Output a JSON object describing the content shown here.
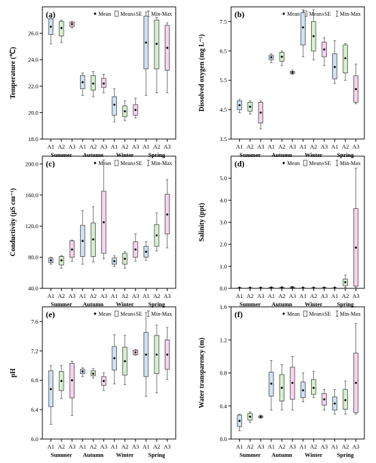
{
  "legend": {
    "mean_label": "Mean",
    "se_label": "Mean±SE",
    "minmax_label": "Min-Max"
  },
  "colors": {
    "A1": "#cfe2f3",
    "A2": "#d5f0cc",
    "A3": "#f7d3ee",
    "stroke": "#555555"
  },
  "chart_data": [
    {
      "type": "box",
      "panel_label": "(a)",
      "ylabel": "Temperature (℃)",
      "ylim": [
        18,
        28
      ],
      "yticks": [
        18.0,
        20.0,
        22.0,
        24.0,
        26.0
      ],
      "groups": [
        "Summer",
        "Autumn",
        "Winter",
        "Spring"
      ],
      "sites": [
        "A1",
        "A2",
        "A3"
      ],
      "boxes": [
        {
          "group": "Summer",
          "site": "A1",
          "min": 25.2,
          "se_low": 25.9,
          "mean": 26.5,
          "se_high": 27.1,
          "max": 27.2
        },
        {
          "group": "Summer",
          "site": "A2",
          "min": 25.3,
          "se_low": 25.8,
          "mean": 26.4,
          "se_high": 26.9,
          "max": 27.0
        },
        {
          "group": "Summer",
          "site": "A3",
          "min": 26.4,
          "se_low": 26.5,
          "mean": 26.7,
          "se_high": 26.85,
          "max": 26.9
        },
        {
          "group": "Autumn",
          "site": "A1",
          "min": 21.3,
          "se_low": 21.8,
          "mean": 22.3,
          "se_high": 22.8,
          "max": 23.0
        },
        {
          "group": "Autumn",
          "site": "A2",
          "min": 21.2,
          "se_low": 21.7,
          "mean": 22.2,
          "se_high": 22.8,
          "max": 23.1
        },
        {
          "group": "Autumn",
          "site": "A3",
          "min": 21.5,
          "se_low": 21.9,
          "mean": 22.2,
          "se_high": 22.6,
          "max": 22.9
        },
        {
          "group": "Winter",
          "site": "A1",
          "min": 19.3,
          "se_low": 19.8,
          "mean": 20.6,
          "se_high": 21.2,
          "max": 21.8
        },
        {
          "group": "Winter",
          "site": "A2",
          "min": 19.4,
          "se_low": 19.7,
          "mean": 20.1,
          "se_high": 20.5,
          "max": 20.9
        },
        {
          "group": "Winter",
          "site": "A3",
          "min": 19.6,
          "se_low": 19.8,
          "mean": 20.2,
          "se_high": 20.6,
          "max": 21.1
        },
        {
          "group": "Spring",
          "site": "A1",
          "min": 21.3,
          "se_low": 23.3,
          "mean": 25.3,
          "se_high": 27.3,
          "max": 27.6
        },
        {
          "group": "Spring",
          "site": "A2",
          "min": 21.5,
          "se_low": 23.3,
          "mean": 25.2,
          "se_high": 27.0,
          "max": 27.2
        },
        {
          "group": "Spring",
          "site": "A3",
          "min": 21.5,
          "se_low": 23.2,
          "mean": 24.9,
          "se_high": 26.6,
          "max": 26.8
        }
      ]
    },
    {
      "type": "box",
      "panel_label": "(b)",
      "ylabel": "Dissolved oxygen (mg L⁻¹)",
      "ylim": [
        3.5,
        8.0
      ],
      "yticks": [
        3.5,
        4.5,
        5.5,
        6.5,
        7.5
      ],
      "groups": [
        "Summer",
        "Autumn",
        "Winter",
        "Spring"
      ],
      "sites": [
        "A1",
        "A2",
        "A3"
      ],
      "boxes": [
        {
          "group": "Summer",
          "site": "A1",
          "min": 4.4,
          "se_low": 4.5,
          "mean": 4.65,
          "se_high": 4.8,
          "max": 4.85
        },
        {
          "group": "Summer",
          "site": "A2",
          "min": 4.35,
          "se_low": 4.45,
          "mean": 4.6,
          "se_high": 4.75,
          "max": 4.8
        },
        {
          "group": "Summer",
          "site": "A3",
          "min": 3.85,
          "se_low": 4.05,
          "mean": 4.4,
          "se_high": 4.75,
          "max": 4.8
        },
        {
          "group": "Autumn",
          "site": "A1",
          "min": 6.1,
          "se_low": 6.2,
          "mean": 6.28,
          "se_high": 6.35,
          "max": 6.4
        },
        {
          "group": "Autumn",
          "site": "A2",
          "min": 6.0,
          "se_low": 6.15,
          "mean": 6.3,
          "se_high": 6.45,
          "max": 6.5
        },
        {
          "group": "Autumn",
          "site": "A3",
          "min": 5.7,
          "se_low": 5.73,
          "mean": 5.77,
          "se_high": 5.8,
          "max": 5.85
        },
        {
          "group": "Winter",
          "site": "A1",
          "min": 6.3,
          "se_low": 6.7,
          "mean": 7.3,
          "se_high": 7.8,
          "max": 7.9
        },
        {
          "group": "Winter",
          "site": "A2",
          "min": 6.2,
          "se_low": 6.5,
          "mean": 7.0,
          "se_high": 7.5,
          "max": 7.9
        },
        {
          "group": "Winter",
          "site": "A3",
          "min": 6.0,
          "se_low": 6.3,
          "mean": 6.55,
          "se_high": 6.8,
          "max": 6.95
        },
        {
          "group": "Spring",
          "site": "A1",
          "min": 5.4,
          "se_low": 5.55,
          "mean": 5.95,
          "se_high": 6.4,
          "max": 6.85
        },
        {
          "group": "Spring",
          "site": "A2",
          "min": 5.5,
          "se_low": 5.75,
          "mean": 6.25,
          "se_high": 6.7,
          "max": 6.75
        },
        {
          "group": "Spring",
          "site": "A3",
          "min": 4.7,
          "se_low": 4.75,
          "mean": 5.2,
          "se_high": 5.65,
          "max": 6.05
        }
      ]
    },
    {
      "type": "box",
      "panel_label": "(c)",
      "ylabel": "Conductivity (μS cm⁻¹)",
      "ylim": [
        40,
        210
      ],
      "yticks": [
        40.0,
        80.0,
        120.0,
        160.0,
        200.0
      ],
      "groups": [
        "Summer",
        "Autumn",
        "Winter",
        "Spring"
      ],
      "sites": [
        "A1",
        "A2",
        "A3"
      ],
      "boxes": [
        {
          "group": "Summer",
          "site": "A1",
          "min": 71,
          "se_low": 73,
          "mean": 76,
          "se_high": 79,
          "max": 80
        },
        {
          "group": "Summer",
          "site": "A2",
          "min": 66,
          "se_low": 70,
          "mean": 76,
          "se_high": 81,
          "max": 82
        },
        {
          "group": "Summer",
          "site": "A3",
          "min": 75,
          "se_low": 80,
          "mean": 90,
          "se_high": 101,
          "max": 102
        },
        {
          "group": "Autumn",
          "site": "A1",
          "min": 71,
          "se_low": 81,
          "mean": 101,
          "se_high": 121,
          "max": 140
        },
        {
          "group": "Autumn",
          "site": "A2",
          "min": 74,
          "se_low": 81,
          "mean": 103,
          "se_high": 124,
          "max": 145
        },
        {
          "group": "Autumn",
          "site": "A3",
          "min": 78,
          "se_low": 85,
          "mean": 125,
          "se_high": 165,
          "max": 205
        },
        {
          "group": "Winter",
          "site": "A1",
          "min": 68,
          "se_low": 71,
          "mean": 75,
          "se_high": 79,
          "max": 82
        },
        {
          "group": "Winter",
          "site": "A2",
          "min": 66,
          "se_low": 71,
          "mean": 78,
          "se_high": 85,
          "max": 87
        },
        {
          "group": "Winter",
          "site": "A3",
          "min": 75,
          "se_low": 80,
          "mean": 90,
          "se_high": 100,
          "max": 110
        },
        {
          "group": "Spring",
          "site": "A1",
          "min": 76,
          "se_low": 80,
          "mean": 87,
          "se_high": 94,
          "max": 100
        },
        {
          "group": "Spring",
          "site": "A2",
          "min": 88,
          "se_low": 94,
          "mean": 108,
          "se_high": 122,
          "max": 137
        },
        {
          "group": "Spring",
          "site": "A3",
          "min": 92,
          "se_low": 110,
          "mean": 135,
          "se_high": 161,
          "max": 180
        }
      ]
    },
    {
      "type": "box",
      "panel_label": "(d)",
      "ylabel": "Salinity (ppt)",
      "ylim": [
        0,
        6
      ],
      "yticks": [
        0.0,
        1.0,
        2.0,
        3.0,
        4.0,
        5.0
      ],
      "groups": [
        "Summer",
        "Autumn",
        "Winter",
        "Spring"
      ],
      "sites": [
        "A1",
        "A2",
        "A3"
      ],
      "boxes": [
        {
          "group": "Summer",
          "site": "A1",
          "min": 0.02,
          "se_low": 0.02,
          "mean": 0.03,
          "se_high": 0.03,
          "max": 0.03
        },
        {
          "group": "Summer",
          "site": "A2",
          "min": 0.02,
          "se_low": 0.02,
          "mean": 0.03,
          "se_high": 0.03,
          "max": 0.03
        },
        {
          "group": "Summer",
          "site": "A3",
          "min": 0.02,
          "se_low": 0.02,
          "mean": 0.03,
          "se_high": 0.03,
          "max": 0.04
        },
        {
          "group": "Autumn",
          "site": "A1",
          "min": 0.03,
          "se_low": 0.03,
          "mean": 0.04,
          "se_high": 0.05,
          "max": 0.06
        },
        {
          "group": "Autumn",
          "site": "A2",
          "min": 0.03,
          "se_low": 0.03,
          "mean": 0.04,
          "se_high": 0.05,
          "max": 0.07
        },
        {
          "group": "Autumn",
          "site": "A3",
          "min": 0.03,
          "se_low": 0.04,
          "mean": 0.05,
          "se_high": 0.06,
          "max": 0.08
        },
        {
          "group": "Winter",
          "site": "A1",
          "min": 0.02,
          "se_low": 0.02,
          "mean": 0.03,
          "se_high": 0.03,
          "max": 0.04
        },
        {
          "group": "Winter",
          "site": "A2",
          "min": 0.02,
          "se_low": 0.02,
          "mean": 0.03,
          "se_high": 0.03,
          "max": 0.04
        },
        {
          "group": "Winter",
          "site": "A3",
          "min": 0.02,
          "se_low": 0.03,
          "mean": 0.03,
          "se_high": 0.04,
          "max": 0.04
        },
        {
          "group": "Spring",
          "site": "A1",
          "min": 0.02,
          "se_low": 0.02,
          "mean": 0.03,
          "se_high": 0.03,
          "max": 0.04
        },
        {
          "group": "Spring",
          "site": "A2",
          "min": 0.04,
          "se_low": 0.12,
          "mean": 0.28,
          "se_high": 0.42,
          "max": 0.6
        },
        {
          "group": "Spring",
          "site": "A3",
          "min": 0.05,
          "se_low": 0.1,
          "mean": 1.85,
          "se_high": 3.62,
          "max": 5.45
        }
      ]
    },
    {
      "type": "box",
      "panel_label": "(e)",
      "ylabel": "pH",
      "ylim": [
        6.0,
        7.8
      ],
      "yticks": [
        6.0,
        6.4,
        6.8,
        7.2,
        7.6
      ],
      "groups": [
        "Summer",
        "Autumn",
        "Winter",
        "Spring"
      ],
      "sites": [
        "A1",
        "A2",
        "A3"
      ],
      "boxes": [
        {
          "group": "Summer",
          "site": "A1",
          "min": 6.2,
          "se_low": 6.44,
          "mean": 6.68,
          "se_high": 6.93,
          "max": 7.0
        },
        {
          "group": "Summer",
          "site": "A2",
          "min": 6.55,
          "se_low": 6.66,
          "mean": 6.79,
          "se_high": 6.92,
          "max": 7.0
        },
        {
          "group": "Summer",
          "site": "A3",
          "min": 6.32,
          "se_low": 6.56,
          "mean": 6.8,
          "se_high": 7.03,
          "max": 7.06
        },
        {
          "group": "Autumn",
          "site": "A1",
          "min": 6.85,
          "se_low": 6.89,
          "mean": 6.92,
          "se_high": 6.95,
          "max": 6.97
        },
        {
          "group": "Autumn",
          "site": "A2",
          "min": 6.83,
          "se_low": 6.86,
          "mean": 6.89,
          "se_high": 6.93,
          "max": 6.96
        },
        {
          "group": "Autumn",
          "site": "A3",
          "min": 6.66,
          "se_low": 6.73,
          "mean": 6.79,
          "se_high": 6.85,
          "max": 6.9
        },
        {
          "group": "Winter",
          "site": "A1",
          "min": 6.75,
          "se_low": 6.94,
          "mean": 7.1,
          "se_high": 7.26,
          "max": 7.42
        },
        {
          "group": "Winter",
          "site": "A2",
          "min": 6.74,
          "se_low": 6.87,
          "mean": 7.06,
          "se_high": 7.25,
          "max": 7.41
        },
        {
          "group": "Winter",
          "site": "A3",
          "min": 7.14,
          "se_low": 7.15,
          "mean": 7.18,
          "se_high": 7.21,
          "max": 7.22
        },
        {
          "group": "Spring",
          "site": "A1",
          "min": 6.58,
          "se_low": 6.85,
          "mean": 7.15,
          "se_high": 7.45,
          "max": 7.72
        },
        {
          "group": "Spring",
          "site": "A2",
          "min": 6.63,
          "se_low": 6.89,
          "mean": 7.15,
          "se_high": 7.41,
          "max": 7.55
        },
        {
          "group": "Spring",
          "site": "A3",
          "min": 6.81,
          "se_low": 6.95,
          "mean": 7.15,
          "se_high": 7.35,
          "max": 7.52
        }
      ]
    },
    {
      "type": "box",
      "panel_label": "(f)",
      "ylabel": "Water transparency (m)",
      "ylim": [
        0,
        1.6
      ],
      "yticks": [
        0.0,
        0.4,
        0.8,
        1.2,
        1.6
      ],
      "groups": [
        "Summer",
        "Autumn",
        "Winter",
        "Spring"
      ],
      "sites": [
        "A1",
        "A2",
        "A3"
      ],
      "boxes": [
        {
          "group": "Summer",
          "site": "A1",
          "min": 0.1,
          "se_low": 0.15,
          "mean": 0.22,
          "se_high": 0.29,
          "max": 0.3
        },
        {
          "group": "Summer",
          "site": "A2",
          "min": 0.2,
          "se_low": 0.23,
          "mean": 0.27,
          "se_high": 0.31,
          "max": 0.33
        },
        {
          "group": "Summer",
          "site": "A3",
          "min": 0.25,
          "se_low": 0.26,
          "mean": 0.27,
          "se_high": 0.28,
          "max": 0.29
        },
        {
          "group": "Autumn",
          "site": "A1",
          "min": 0.35,
          "se_low": 0.52,
          "mean": 0.67,
          "se_high": 0.81,
          "max": 0.95
        },
        {
          "group": "Autumn",
          "site": "A2",
          "min": 0.35,
          "se_low": 0.46,
          "mean": 0.62,
          "se_high": 0.78,
          "max": 0.9
        },
        {
          "group": "Autumn",
          "site": "A3",
          "min": 0.35,
          "se_low": 0.48,
          "mean": 0.68,
          "se_high": 0.87,
          "max": 1.0
        },
        {
          "group": "Winter",
          "site": "A1",
          "min": 0.45,
          "se_low": 0.5,
          "mean": 0.59,
          "se_high": 0.69,
          "max": 0.8
        },
        {
          "group": "Winter",
          "site": "A2",
          "min": 0.5,
          "se_low": 0.54,
          "mean": 0.62,
          "se_high": 0.72,
          "max": 0.82
        },
        {
          "group": "Winter",
          "site": "A3",
          "min": 0.35,
          "se_low": 0.41,
          "mean": 0.48,
          "se_high": 0.55,
          "max": 0.6
        },
        {
          "group": "Spring",
          "site": "A1",
          "min": 0.3,
          "se_low": 0.35,
          "mean": 0.43,
          "se_high": 0.51,
          "max": 0.6
        },
        {
          "group": "Spring",
          "site": "A2",
          "min": 0.3,
          "se_low": 0.36,
          "mean": 0.47,
          "se_high": 0.6,
          "max": 0.7
        },
        {
          "group": "Spring",
          "site": "A3",
          "min": 0.3,
          "se_low": 0.32,
          "mean": 0.68,
          "se_high": 1.04,
          "max": 1.4
        }
      ]
    }
  ]
}
